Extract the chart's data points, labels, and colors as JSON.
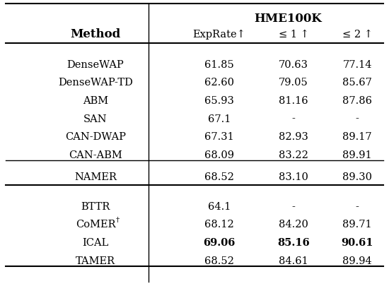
{
  "title": "HME100K",
  "col_headers": [
    "Method",
    "ExpRate↑",
    "≤ 1 ↑",
    "≤ 2 ↑"
  ],
  "rows": [
    [
      "DenseWAP",
      "61.85",
      "70.63",
      "77.14"
    ],
    [
      "DenseWAP-TD",
      "62.60",
      "79.05",
      "85.67"
    ],
    [
      "ABM",
      "65.93",
      "81.16",
      "87.86"
    ],
    [
      "SAN",
      "67.1",
      "-",
      "-"
    ],
    [
      "CAN-DWAP",
      "67.31",
      "82.93",
      "89.17"
    ],
    [
      "CAN-ABM",
      "68.09",
      "83.22",
      "89.91"
    ]
  ],
  "namer_row": [
    "NAMER",
    "68.52",
    "83.10",
    "89.30"
  ],
  "bottom_rows": [
    [
      "BTTR",
      "64.1",
      "-",
      "-",
      false
    ],
    [
      "CoMER†",
      "68.12",
      "84.20",
      "89.71",
      false
    ],
    [
      "ICAL",
      "69.06",
      "85.16",
      "90.61",
      true
    ],
    [
      "TAMER",
      "68.52",
      "84.61",
      "89.94",
      false
    ]
  ],
  "bold_vals": [
    "69.06",
    "85.16",
    "90.61"
  ],
  "bg_color": "#ffffff",
  "font_size": 10.5,
  "header_font_size": 12
}
